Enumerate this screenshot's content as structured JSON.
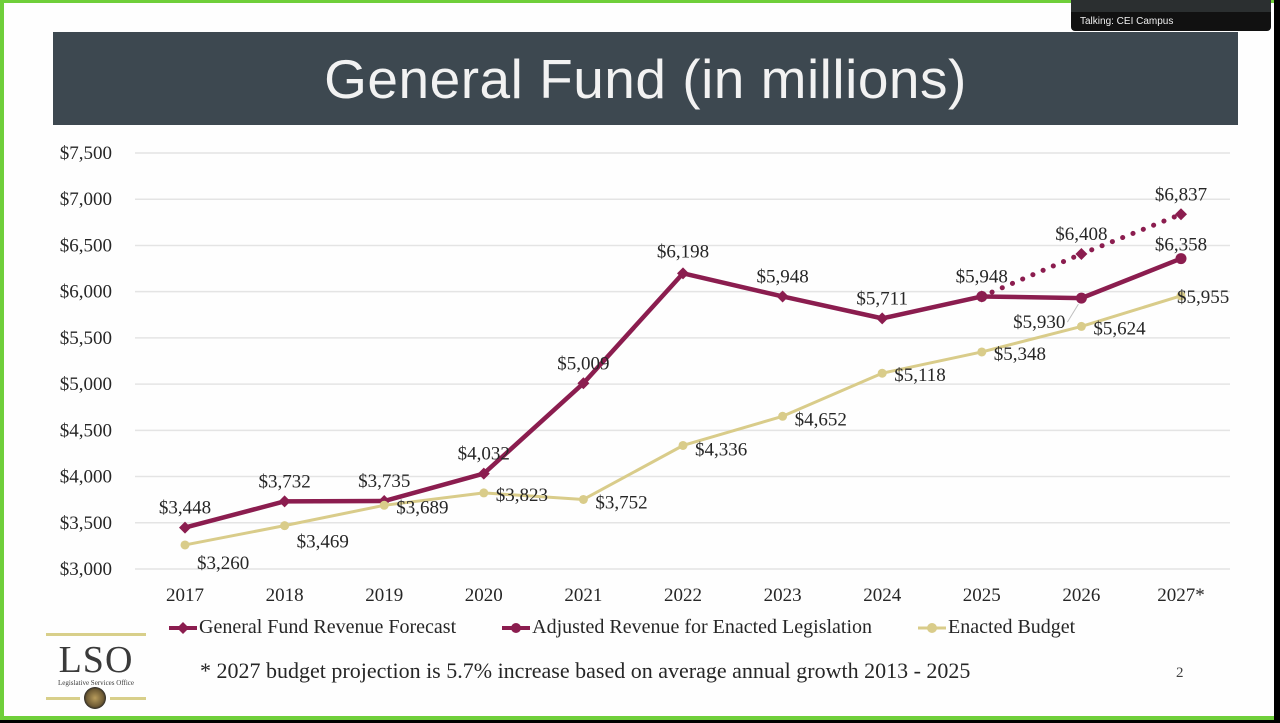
{
  "overlay": {
    "speaker_label": "Talking: CEI Campus"
  },
  "slide": {
    "title": "General Fund (in millions)",
    "footnote": "* 2027 budget projection is 5.7% increase based on average annual growth 2013 - 2025",
    "page_number": "2",
    "logo": {
      "text": "LSO",
      "subtitle": "Legislative Services Office"
    },
    "colors": {
      "maroon": "#8b1d4f",
      "gold": "#d9cc8a",
      "title_bar": "#3d4850",
      "border": "#6fcf3a"
    }
  },
  "chart_data": {
    "type": "line",
    "title": "General Fund (in millions)",
    "xlabel": "",
    "ylabel": "",
    "categories": [
      "2017",
      "2018",
      "2019",
      "2020",
      "2021",
      "2022",
      "2023",
      "2024",
      "2025",
      "2026",
      "2027*"
    ],
    "ylim": [
      3000,
      7500
    ],
    "yticks": [
      "$3,000",
      "$3,500",
      "$4,000",
      "$4,500",
      "$5,000",
      "$5,500",
      "$6,000",
      "$6,500",
      "$7,000",
      "$7,500"
    ],
    "ytick_values": [
      3000,
      3500,
      4000,
      4500,
      5000,
      5500,
      6000,
      6500,
      7000,
      7500
    ],
    "grid": true,
    "legend_position": "bottom",
    "series": [
      {
        "name": "General Fund Revenue Forecast",
        "color": "#8b1d4f",
        "marker": "diamond",
        "values": [
          3448,
          3732,
          3735,
          4032,
          5009,
          6198,
          5948,
          5711,
          5948,
          6408,
          6837
        ],
        "labels": [
          "$3,448",
          "$3,732",
          "$3,735",
          "$4,032",
          "$5,009",
          "$6,198",
          "$5,948",
          "$5,711",
          "$5,948",
          "$6,408",
          "$6,837"
        ],
        "dotted_from_index": 8
      },
      {
        "name": "Adjusted Revenue for Enacted Legislation",
        "color": "#8b1d4f",
        "marker": "circle",
        "values": [
          null,
          null,
          null,
          null,
          null,
          null,
          null,
          null,
          5948,
          5930,
          6358
        ],
        "labels": [
          null,
          null,
          null,
          null,
          null,
          null,
          null,
          null,
          null,
          "$5,930",
          "$6,358"
        ]
      },
      {
        "name": "Enacted Budget",
        "color": "#d9cc8a",
        "marker": "circle",
        "values": [
          3260,
          3469,
          3689,
          3823,
          3752,
          4336,
          4652,
          5118,
          5348,
          5624,
          5955
        ],
        "labels": [
          "$3,260",
          "$3,469",
          "$3,689",
          "$3,823",
          "$3,752",
          "$4,336",
          "$4,652",
          "$5,118",
          "$5,348",
          "$5,624",
          "$5,955"
        ]
      }
    ]
  }
}
